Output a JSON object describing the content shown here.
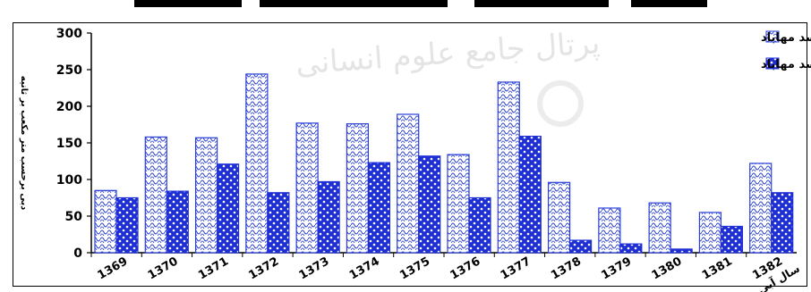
{
  "chart_data": {
    "type": "bar",
    "categories": [
      "1369",
      "1370",
      "1371",
      "1372",
      "1373",
      "1374",
      "1375",
      "1376",
      "1377",
      "1378",
      "1379",
      "1380",
      "1381",
      "1382"
    ],
    "series": [
      {
        "name": "دبی ورودی به سد مهاباد",
        "values": [
          85,
          158,
          157,
          244,
          177,
          176,
          189,
          134,
          233,
          96,
          61,
          68,
          55,
          122
        ],
        "color": "#2a3fd8",
        "fill": "#ffffff"
      },
      {
        "name": "دبی خروجی از سد مهاباد",
        "values": [
          75,
          84,
          121,
          82,
          97,
          123,
          132,
          75,
          159,
          17,
          12,
          5,
          36,
          82
        ],
        "color": "#1f2fd6",
        "fill": "#1f2fd6"
      }
    ],
    "ylabel": "دبی برحسب متر مکعب بر ثانیه",
    "xlabel": "سال آبی",
    "ylim": [
      0,
      300
    ],
    "yticks": [
      "0",
      "50",
      "100",
      "150",
      "200",
      "250",
      "300"
    ],
    "grid": false,
    "legend_position": "top-right"
  },
  "watermark_text": "پرتال جامع علوم انسانی"
}
